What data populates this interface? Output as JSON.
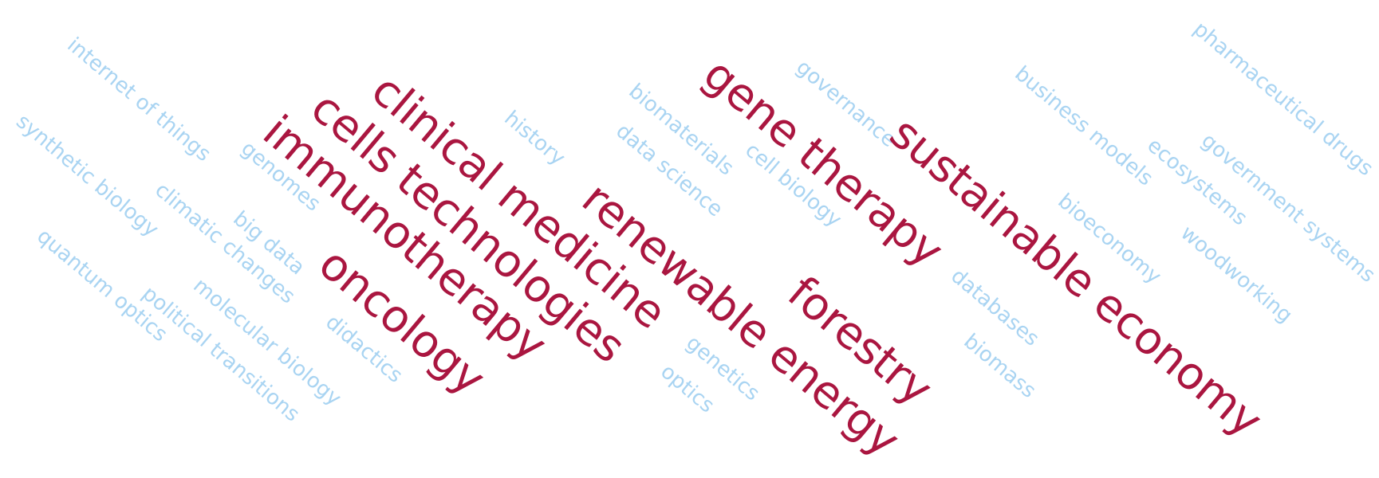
{
  "colors": {
    "major": "#aa1640",
    "minor": "#a9d4f2",
    "background": "#ffffff"
  },
  "words": {
    "internet_of_things": "internet of things",
    "synthetic_biology": "synthetic biology",
    "quantum_optics": "quantum optics",
    "genomes": "genomes",
    "climatic_changes": "climatic changes",
    "big_data": "big data",
    "political_transitions": "political transitions",
    "molecular_biology": "molecular biology",
    "didactics": "didactics",
    "history": "history",
    "biomaterials": "biomaterials",
    "data_science": "data science",
    "cell_biology": "cell biology",
    "governance": "governance",
    "genetics": "genetics",
    "optics": "optics",
    "databases": "databases",
    "biomass": "biomass",
    "bioeconomy": "bioeconomy",
    "business_models": "business models",
    "ecosystems": "ecosystems",
    "woodworking": "woodworking",
    "government_systems": "government systems",
    "pharmaceutical_drugs": "pharmaceutical drugs",
    "clinical_medicine": "clinical medicine",
    "cells_technologies": "cells technologies",
    "immunotherapy": "immunotherapy",
    "oncology": "oncology",
    "renewable_energy": "renewable energy",
    "gene_therapy": "gene therapy",
    "forestry": "forestry",
    "sustainable_economy": "sustainable economy"
  }
}
